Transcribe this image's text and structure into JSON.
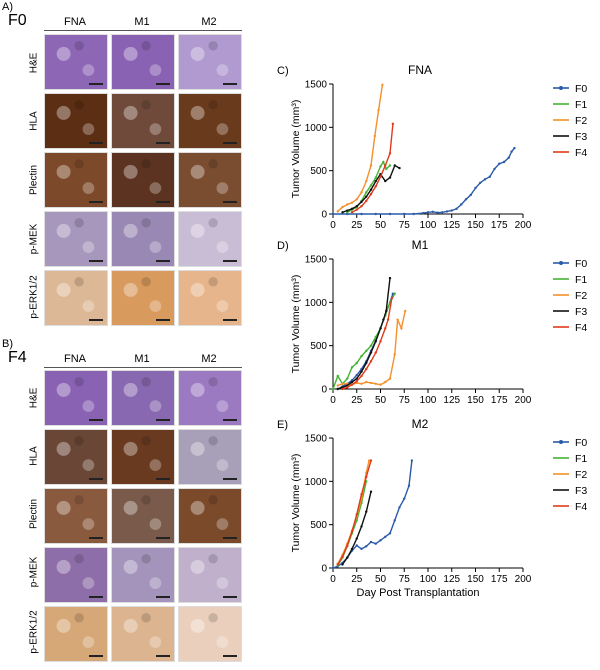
{
  "panels": {
    "A": {
      "letter": "A)",
      "generation": "F0"
    },
    "B": {
      "letter": "B)",
      "generation": "F4"
    }
  },
  "columns": [
    "FNA",
    "M1",
    "M2"
  ],
  "rows": [
    "H&E",
    "HLA",
    "Plectin",
    "p-MEK",
    "p-ERK1/2"
  ],
  "colors": {
    "he": "#8a62b4",
    "hla": "#6e3a1e",
    "plectin": "#7a4424",
    "pmek": "#8f7aa6",
    "perk": "#d8a06a",
    "F0": "#2a5aa8",
    "F1": "#44b334",
    "F2": "#f5902a",
    "F3": "#111111",
    "F4": "#e03a1a"
  },
  "tiles": {
    "A": [
      [
        "#8d66b5",
        "#8a62b4",
        "#b09ad0"
      ],
      [
        "#5c2e14",
        "#6f4a3a",
        "#6a3a1c"
      ],
      [
        "#7c4a2a",
        "#5c3320",
        "#7a4c30"
      ],
      [
        "#a797bc",
        "#9a88b4",
        "#c9bdd6"
      ],
      [
        "#ddb896",
        "#d99a5e",
        "#e7b58c"
      ]
    ],
    "B": [
      [
        "#8a62b4",
        "#8868b0",
        "#9c7ac2"
      ],
      [
        "#6a4636",
        "#6a3a20",
        "#a8a0b8"
      ],
      [
        "#8a5a3e",
        "#7a5a4a",
        "#7a4a2a"
      ],
      [
        "#8e6ea8",
        "#a494bb",
        "#c0b0cc"
      ],
      [
        "#d6a878",
        "#dcb490",
        "#ead0bc"
      ]
    ]
  },
  "chart_data": [
    {
      "type": "line",
      "panel_letter": "C)",
      "title": "FNA",
      "xlabel": "",
      "ylabel": "Tumor Volume (mm³)",
      "xlim": [
        0,
        200
      ],
      "ylim": [
        0,
        1500
      ],
      "xticks": [
        "0",
        "25",
        "50",
        "75",
        "100",
        "125",
        "150",
        "175",
        "200"
      ],
      "yticks": [
        "0",
        "500",
        "1000",
        "1500"
      ],
      "legend": [
        "F0",
        "F1",
        "F2",
        "F3",
        "F4"
      ],
      "series": [
        {
          "name": "F0",
          "x": [
            0,
            15,
            30,
            45,
            60,
            75,
            85,
            95,
            100,
            105,
            110,
            115,
            120,
            125,
            130,
            135,
            140,
            145,
            150,
            155,
            160,
            165,
            170,
            175,
            180,
            185,
            188,
            191
          ],
          "y": [
            0,
            0,
            0,
            0,
            0,
            0,
            0,
            10,
            20,
            25,
            15,
            20,
            30,
            40,
            60,
            110,
            170,
            220,
            300,
            360,
            400,
            430,
            520,
            580,
            600,
            650,
            720,
            760
          ]
        },
        {
          "name": "F1",
          "x": [
            15,
            20,
            25,
            30,
            35,
            40,
            45,
            50,
            53,
            56,
            60
          ],
          "y": [
            20,
            50,
            80,
            150,
            250,
            330,
            420,
            550,
            600,
            520,
            560
          ]
        },
        {
          "name": "F2",
          "x": [
            5,
            10,
            15,
            20,
            25,
            30,
            35,
            40,
            44,
            48,
            52
          ],
          "y": [
            30,
            80,
            110,
            130,
            170,
            250,
            380,
            560,
            900,
            1200,
            1490
          ]
        },
        {
          "name": "F3",
          "x": [
            10,
            15,
            20,
            25,
            30,
            35,
            40,
            45,
            50,
            55,
            60,
            65,
            70
          ],
          "y": [
            20,
            40,
            60,
            90,
            140,
            200,
            280,
            380,
            460,
            380,
            420,
            560,
            530
          ]
        },
        {
          "name": "F4",
          "x": [
            20,
            25,
            30,
            35,
            40,
            45,
            50,
            55,
            60,
            63
          ],
          "y": [
            20,
            50,
            90,
            150,
            230,
            320,
            430,
            560,
            700,
            1040
          ]
        }
      ]
    },
    {
      "type": "line",
      "panel_letter": "D)",
      "title": "M1",
      "xlabel": "",
      "ylabel": "Tumor Volume (mm³)",
      "xlim": [
        0,
        200
      ],
      "ylim": [
        0,
        1500
      ],
      "xticks": [
        "0",
        "25",
        "50",
        "75",
        "100",
        "125",
        "150",
        "175",
        "200"
      ],
      "yticks": [
        "0",
        "500",
        "1000",
        "1500"
      ],
      "legend": [
        "F0",
        "F1",
        "F2",
        "F3",
        "F4"
      ],
      "series": [
        {
          "name": "F0",
          "x": [
            5,
            10,
            15,
            20,
            25,
            30,
            35,
            40,
            45,
            50,
            55,
            60,
            63
          ],
          "y": [
            0,
            30,
            60,
            100,
            160,
            230,
            320,
            440,
            560,
            700,
            850,
            1000,
            1100
          ]
        },
        {
          "name": "F1",
          "x": [
            0,
            5,
            10,
            15,
            20,
            25,
            30,
            35,
            40,
            45,
            50,
            55,
            60,
            65
          ],
          "y": [
            0,
            150,
            60,
            120,
            250,
            300,
            380,
            440,
            500,
            600,
            700,
            850,
            1000,
            1100
          ]
        },
        {
          "name": "F2",
          "x": [
            5,
            10,
            15,
            20,
            25,
            30,
            35,
            40,
            45,
            50,
            55,
            60,
            65,
            68,
            72,
            76
          ],
          "y": [
            40,
            60,
            60,
            50,
            70,
            60,
            80,
            70,
            60,
            50,
            80,
            120,
            400,
            800,
            700,
            900
          ]
        },
        {
          "name": "F3",
          "x": [
            5,
            10,
            15,
            20,
            25,
            30,
            35,
            40,
            45,
            50,
            53,
            56,
            60
          ],
          "y": [
            0,
            20,
            40,
            80,
            120,
            200,
            300,
            420,
            550,
            700,
            800,
            900,
            1280
          ]
        },
        {
          "name": "F4",
          "x": [
            10,
            15,
            20,
            25,
            30,
            35,
            40,
            45,
            50,
            55,
            58,
            62
          ],
          "y": [
            0,
            20,
            50,
            90,
            150,
            230,
            320,
            420,
            550,
            700,
            800,
            1050
          ]
        }
      ]
    },
    {
      "type": "line",
      "panel_letter": "E)",
      "title": "M2",
      "xlabel": "Day Post Transplantation",
      "ylabel": "Tumor Volume (mm³)",
      "xlim": [
        0,
        200
      ],
      "ylim": [
        0,
        1500
      ],
      "xticks": [
        "0",
        "25",
        "50",
        "75",
        "100",
        "125",
        "150",
        "175",
        "200"
      ],
      "yticks": [
        "0",
        "500",
        "1000",
        "1500"
      ],
      "legend": [
        "F0",
        "F1",
        "F2",
        "F3",
        "F4"
      ],
      "series": [
        {
          "name": "F0",
          "x": [
            0,
            5,
            10,
            15,
            20,
            25,
            30,
            35,
            40,
            45,
            50,
            55,
            60,
            65,
            70,
            75,
            80,
            83
          ],
          "y": [
            0,
            20,
            60,
            120,
            200,
            260,
            220,
            250,
            300,
            280,
            320,
            360,
            400,
            550,
            700,
            800,
            950,
            1240
          ]
        },
        {
          "name": "F1",
          "x": [
            5,
            10,
            15,
            20,
            25,
            30,
            35
          ],
          "y": [
            30,
            120,
            250,
            400,
            550,
            750,
            1000
          ]
        },
        {
          "name": "F2",
          "x": [
            5,
            10,
            15,
            20,
            25,
            30,
            35,
            38
          ],
          "y": [
            50,
            150,
            280,
            430,
            600,
            800,
            1100,
            1240
          ]
        },
        {
          "name": "F3",
          "x": [
            10,
            15,
            20,
            25,
            30,
            35,
            40
          ],
          "y": [
            40,
            120,
            220,
            340,
            480,
            650,
            880
          ]
        },
        {
          "name": "F4",
          "x": [
            5,
            10,
            15,
            20,
            25,
            30,
            35,
            40
          ],
          "y": [
            40,
            130,
            260,
            420,
            620,
            850,
            1050,
            1240
          ]
        }
      ]
    }
  ]
}
